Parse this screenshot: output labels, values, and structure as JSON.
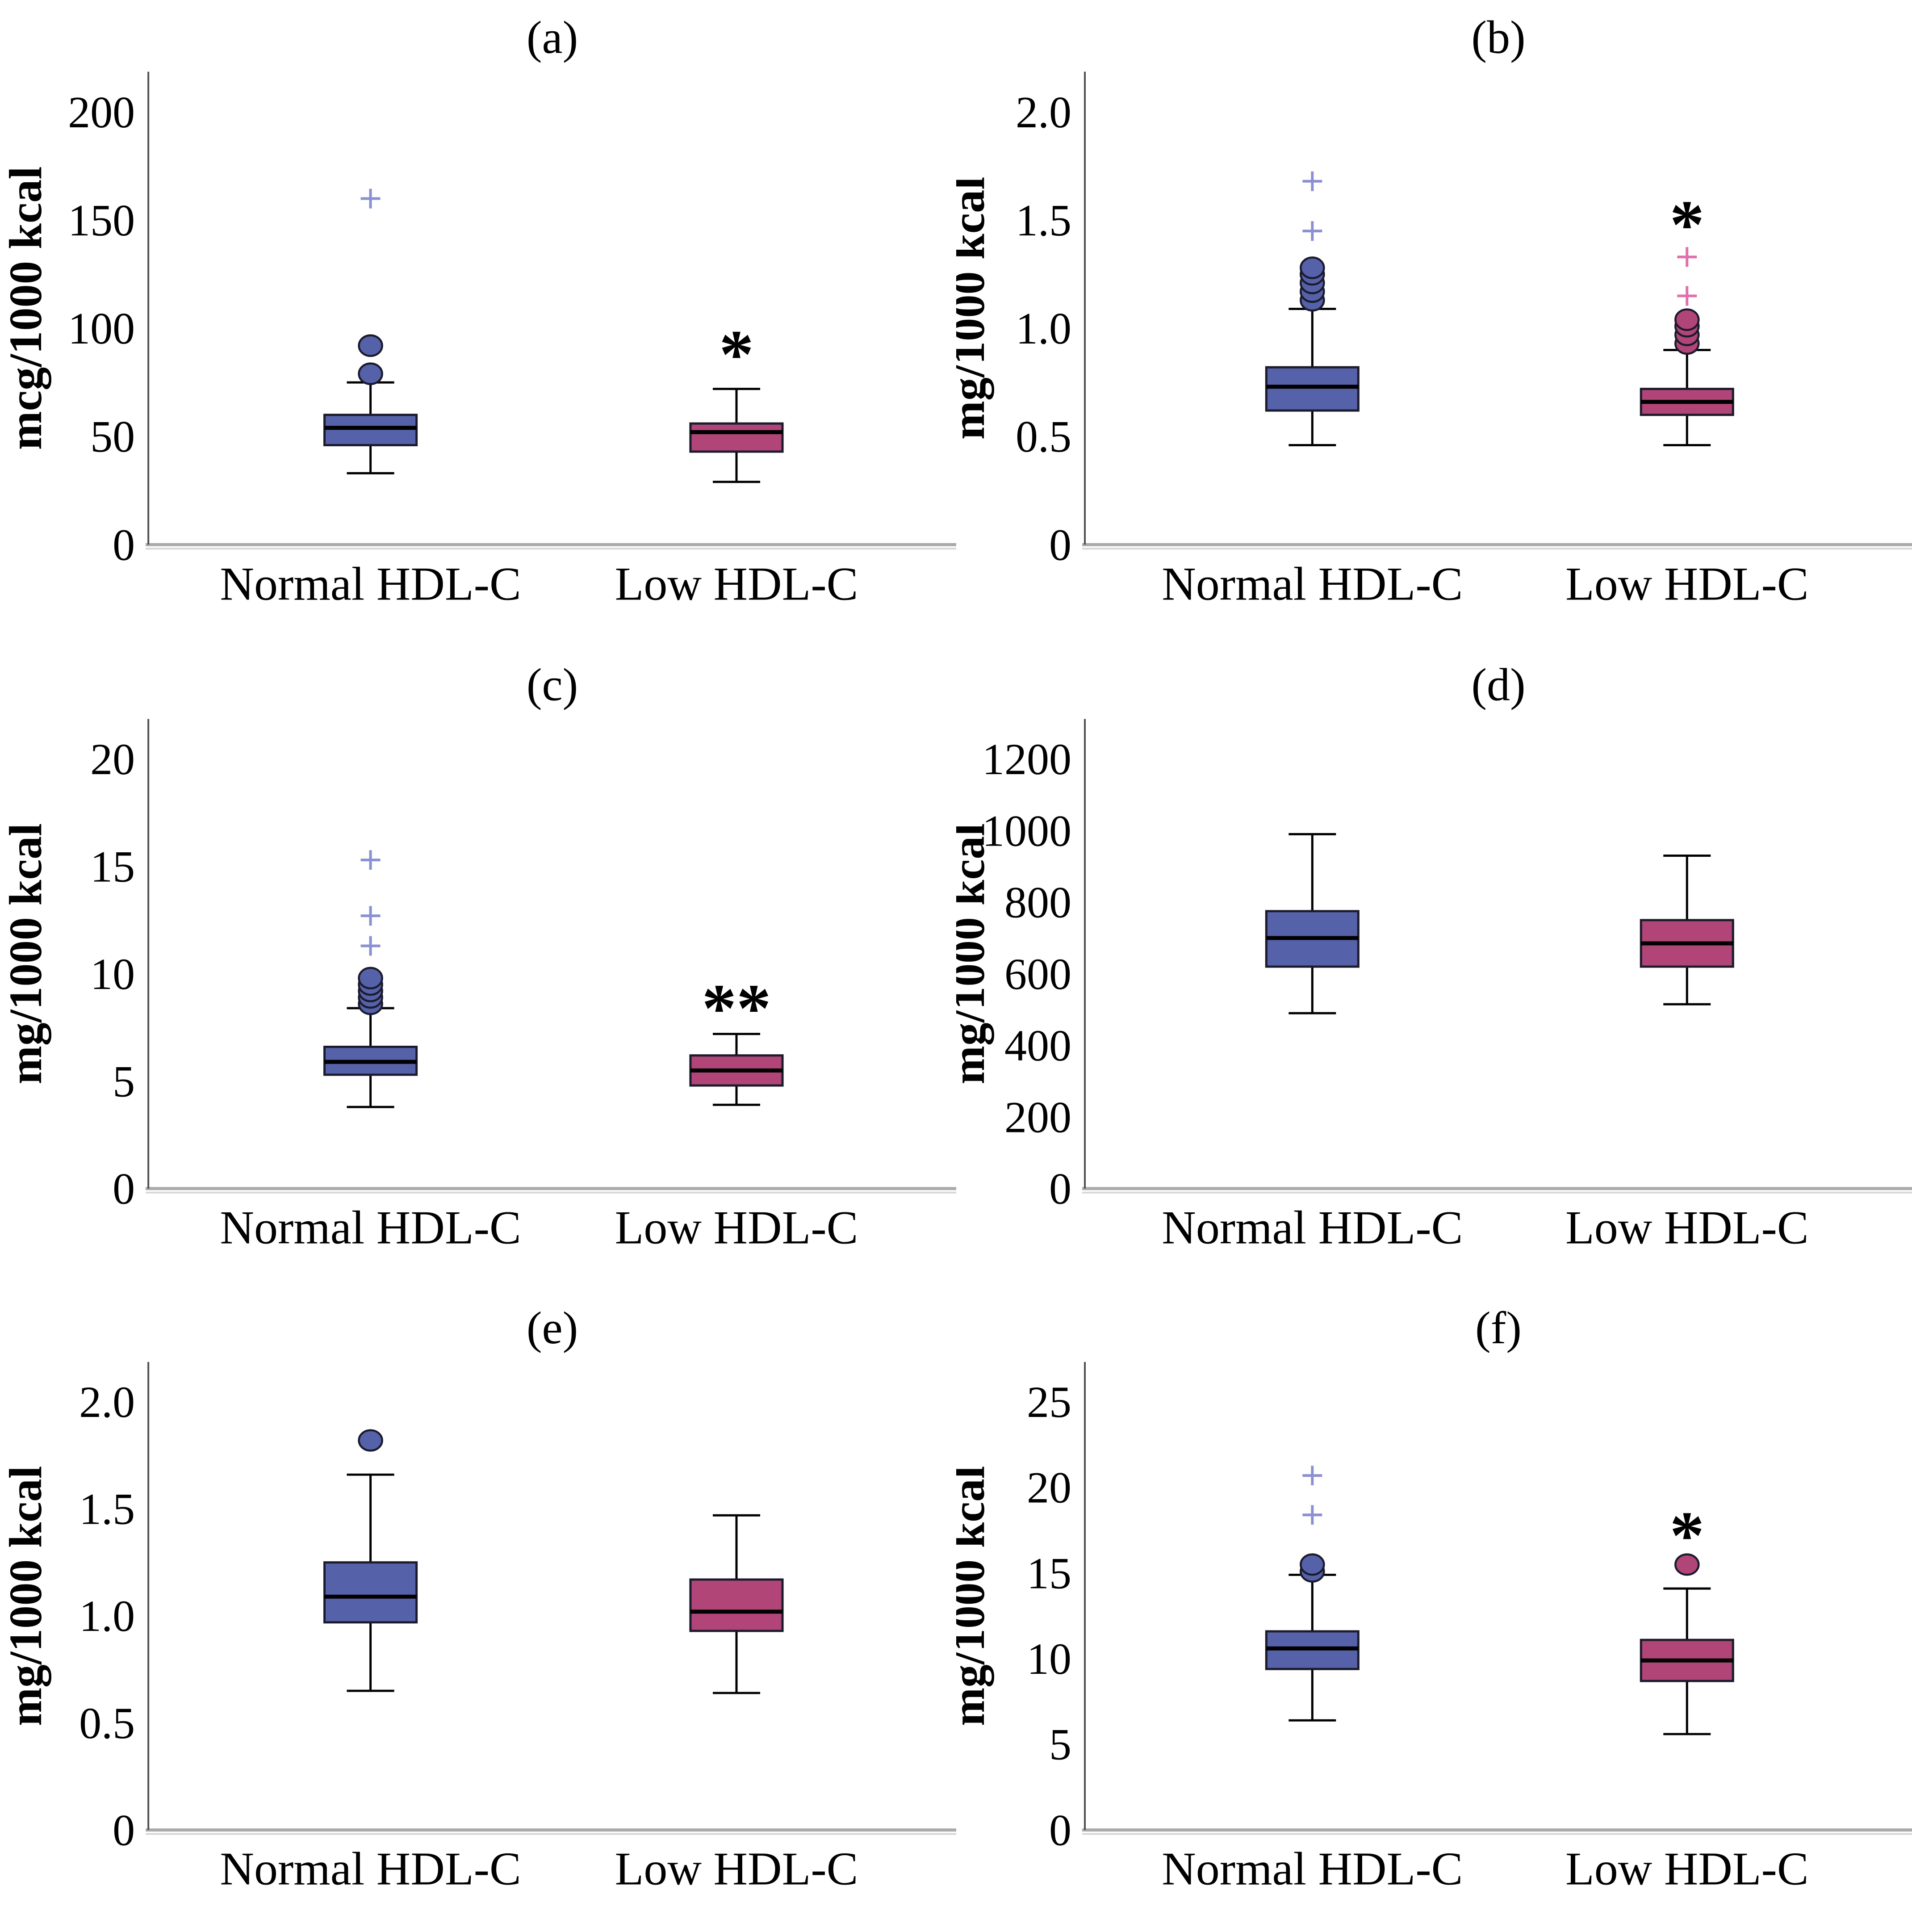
{
  "figure": {
    "background": "#ffffff",
    "group_labels": [
      "Normal HDL-C",
      "Low HDL-C"
    ],
    "colors": {
      "normal_fill": "#5561a9",
      "normal_outlier_plus": "#8a90d1",
      "low_fill": "#b14578",
      "low_outlier_plus": "#e070ad",
      "box_stroke": "#1b1b2c",
      "whisker_stroke": "#000000",
      "y_axis_line": "#4f4f4f",
      "baseline_dark": "#aaaaaa",
      "baseline_light": "#d6d6d6"
    }
  },
  "chart_data": [
    {
      "type": "box",
      "panel": "a",
      "title": "(a)",
      "ylabel": "mcg/1000 kcal",
      "categories": [
        "Normal HDL-C",
        "Low HDL-C"
      ],
      "yticks": [
        {
          "v": 0,
          "label": "0"
        },
        {
          "v": 50,
          "label": "50"
        },
        {
          "v": 100,
          "label": "100"
        },
        {
          "v": 150,
          "label": "150"
        },
        {
          "v": 200,
          "label": "200"
        }
      ],
      "ymax_tick": 200,
      "axis_side": "left",
      "series": [
        {
          "name": "Normal HDL-C",
          "color": "#5561a9",
          "plus_color": "#8a90d1",
          "whisker_low": 33,
          "q1": 46,
          "median": 54,
          "q3": 60,
          "whisker_high": 75,
          "outliers_circle": [
            79,
            92
          ],
          "outliers_plus": [
            160
          ],
          "annotation": null,
          "annotation_y": null
        },
        {
          "name": "Low HDL-C",
          "color": "#b14578",
          "plus_color": "#e070ad",
          "whisker_low": 29,
          "q1": 43,
          "median": 52,
          "q3": 56,
          "whisker_high": 72,
          "outliers_circle": [],
          "outliers_plus": [],
          "annotation": "*",
          "annotation_y": 88
        }
      ]
    },
    {
      "type": "box",
      "panel": "b",
      "title": "(b)",
      "ylabel": "mg/1000 kcal",
      "categories": [
        "Normal HDL-C",
        "Low HDL-C"
      ],
      "yticks": [
        {
          "v": 0,
          "label": "0"
        },
        {
          "v": 0.5,
          "label": "0.5"
        },
        {
          "v": 1.0,
          "label": "1.0"
        },
        {
          "v": 1.5,
          "label": "1.5"
        },
        {
          "v": 2.0,
          "label": "2.0"
        }
      ],
      "ymax_tick": 2.0,
      "axis_side": "right",
      "series": [
        {
          "name": "Normal HDL-C",
          "color": "#5561a9",
          "plus_color": "#8a90d1",
          "whisker_low": 0.46,
          "q1": 0.62,
          "median": 0.73,
          "q3": 0.82,
          "whisker_high": 1.09,
          "outliers_circle": [
            1.13,
            1.17,
            1.21,
            1.25,
            1.28
          ],
          "outliers_plus": [
            1.45,
            1.68
          ],
          "annotation": null,
          "annotation_y": null
        },
        {
          "name": "Low HDL-C",
          "color": "#b14578",
          "plus_color": "#e070ad",
          "whisker_low": 0.46,
          "q1": 0.6,
          "median": 0.66,
          "q3": 0.72,
          "whisker_high": 0.9,
          "outliers_circle": [
            0.93,
            0.97,
            1.01,
            1.04
          ],
          "outliers_plus": [
            1.15,
            1.33
          ],
          "annotation": "*",
          "annotation_y": 1.48
        }
      ]
    },
    {
      "type": "box",
      "panel": "c",
      "title": "(c)",
      "ylabel": "mg/1000 kcal",
      "categories": [
        "Normal HDL-C",
        "Low HDL-C"
      ],
      "yticks": [
        {
          "v": 0,
          "label": "0"
        },
        {
          "v": 5,
          "label": "5"
        },
        {
          "v": 10,
          "label": "10"
        },
        {
          "v": 15,
          "label": "15"
        },
        {
          "v": 20,
          "label": "20"
        }
      ],
      "ymax_tick": 20,
      "axis_side": "left",
      "series": [
        {
          "name": "Normal HDL-C",
          "color": "#5561a9",
          "plus_color": "#8a90d1",
          "whisker_low": 3.8,
          "q1": 5.3,
          "median": 5.9,
          "q3": 6.6,
          "whisker_high": 8.4,
          "outliers_circle": [
            8.6,
            8.9,
            9.2,
            9.5,
            9.8
          ],
          "outliers_plus": [
            11.3,
            12.7,
            15.3
          ],
          "annotation": null,
          "annotation_y": null
        },
        {
          "name": "Low HDL-C",
          "color": "#b14578",
          "plus_color": "#e070ad",
          "whisker_low": 3.9,
          "q1": 4.8,
          "median": 5.5,
          "q3": 6.2,
          "whisker_high": 7.2,
          "outliers_circle": [],
          "outliers_plus": [],
          "annotation": "**",
          "annotation_y": 8.4
        }
      ]
    },
    {
      "type": "box",
      "panel": "d",
      "title": "(d)",
      "ylabel": "mg/1000 kcal",
      "categories": [
        "Normal HDL-C",
        "Low HDL-C"
      ],
      "yticks": [
        {
          "v": 0,
          "label": "0"
        },
        {
          "v": 200,
          "label": "200"
        },
        {
          "v": 400,
          "label": "400"
        },
        {
          "v": 600,
          "label": "600"
        },
        {
          "v": 800,
          "label": "800"
        },
        {
          "v": 1000,
          "label": "1000"
        },
        {
          "v": 1200,
          "label": "1200"
        }
      ],
      "ymax_tick": 1200,
      "axis_side": "right",
      "series": [
        {
          "name": "Normal HDL-C",
          "color": "#5561a9",
          "plus_color": "#8a90d1",
          "whisker_low": 490,
          "q1": 620,
          "median": 700,
          "q3": 775,
          "whisker_high": 990,
          "outliers_circle": [],
          "outliers_plus": [],
          "annotation": null,
          "annotation_y": null
        },
        {
          "name": "Low HDL-C",
          "color": "#b14578",
          "plus_color": "#e070ad",
          "whisker_low": 515,
          "q1": 620,
          "median": 685,
          "q3": 750,
          "whisker_high": 930,
          "outliers_circle": [],
          "outliers_plus": [],
          "annotation": null,
          "annotation_y": null
        }
      ]
    },
    {
      "type": "box",
      "panel": "e",
      "title": "(e)",
      "ylabel": "mg/1000 kcal",
      "categories": [
        "Normal HDL-C",
        "Low HDL-C"
      ],
      "yticks": [
        {
          "v": 0,
          "label": "0"
        },
        {
          "v": 0.5,
          "label": "0.5"
        },
        {
          "v": 1.0,
          "label": "1.0"
        },
        {
          "v": 1.5,
          "label": "1.5"
        },
        {
          "v": 2.0,
          "label": "2.0"
        }
      ],
      "ymax_tick": 2.0,
      "axis_side": "left",
      "series": [
        {
          "name": "Normal HDL-C",
          "color": "#5561a9",
          "plus_color": "#8a90d1",
          "whisker_low": 0.65,
          "q1": 0.97,
          "median": 1.09,
          "q3": 1.25,
          "whisker_high": 1.66,
          "outliers_circle": [
            1.82
          ],
          "outliers_plus": [],
          "annotation": null,
          "annotation_y": null
        },
        {
          "name": "Low HDL-C",
          "color": "#b14578",
          "plus_color": "#e070ad",
          "whisker_low": 0.64,
          "q1": 0.93,
          "median": 1.02,
          "q3": 1.17,
          "whisker_high": 1.47,
          "outliers_circle": [],
          "outliers_plus": [],
          "annotation": null,
          "annotation_y": null
        }
      ]
    },
    {
      "type": "box",
      "panel": "f",
      "title": "(f)",
      "ylabel": "mg/1000 kcal",
      "categories": [
        "Normal HDL-C",
        "Low HDL-C"
      ],
      "yticks": [
        {
          "v": 0,
          "label": "0"
        },
        {
          "v": 5,
          "label": "5"
        },
        {
          "v": 10,
          "label": "10"
        },
        {
          "v": 15,
          "label": "15"
        },
        {
          "v": 20,
          "label": "20"
        },
        {
          "v": 25,
          "label": "25"
        }
      ],
      "ymax_tick": 25,
      "axis_side": "right",
      "series": [
        {
          "name": "Normal HDL-C",
          "color": "#5561a9",
          "plus_color": "#8a90d1",
          "whisker_low": 6.4,
          "q1": 9.4,
          "median": 10.6,
          "q3": 11.6,
          "whisker_high": 14.9,
          "outliers_circle": [
            15.1,
            15.5
          ],
          "outliers_plus": [
            18.4,
            20.7
          ],
          "annotation": null,
          "annotation_y": null
        },
        {
          "name": "Low HDL-C",
          "color": "#b14578",
          "plus_color": "#e070ad",
          "whisker_low": 5.6,
          "q1": 8.7,
          "median": 9.9,
          "q3": 11.1,
          "whisker_high": 14.1,
          "outliers_circle": [
            15.5
          ],
          "outliers_plus": [],
          "annotation": "*",
          "annotation_y": 17.2
        }
      ]
    }
  ]
}
